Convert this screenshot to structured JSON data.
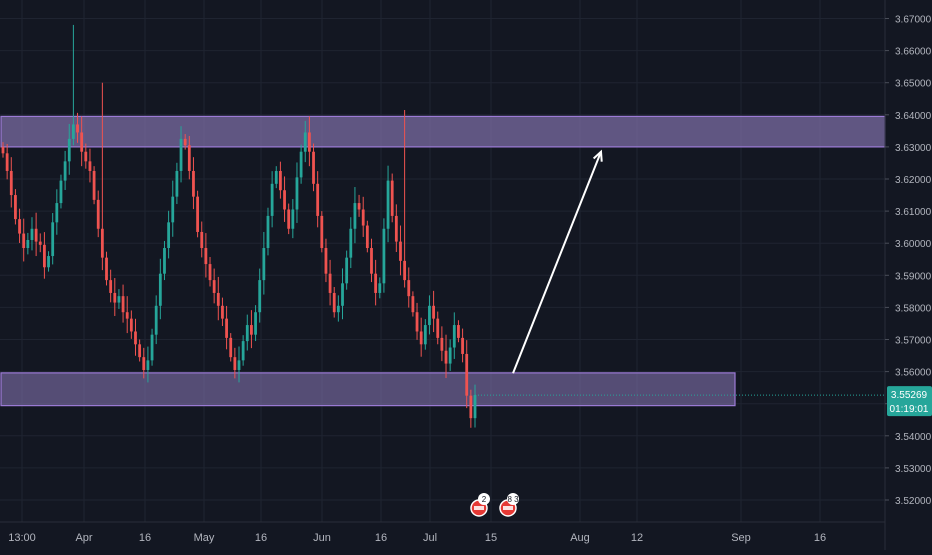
{
  "colors": {
    "background": "#131722",
    "grid": "#1f2431",
    "axis_text": "#b2b5be",
    "up_candle": "#26a69a",
    "down_candle": "#ef5350",
    "zone_fill": "#7e6fa8",
    "zone_border": "#9c7bd6",
    "arrow": "#ffffff",
    "price_label_bg": "#26a69a",
    "price_line": "#26a69a",
    "badge_red": "#e53935",
    "badge_white": "#ffffff"
  },
  "chart_data": {
    "type": "candlestick",
    "x_tick_labels": [
      "13:00",
      "Apr",
      "16",
      "May",
      "16",
      "Jun",
      "16",
      "Jul",
      "15",
      "Aug",
      "12",
      "Sep",
      "16"
    ],
    "y_tick_labels": [
      "3.67000",
      "3.66000",
      "3.65000",
      "3.64000",
      "3.63000",
      "3.62000",
      "3.61000",
      "3.60000",
      "3.59000",
      "3.58000",
      "3.57000",
      "3.56000",
      "3.55000",
      "3.54000",
      "3.53000",
      "3.52000"
    ],
    "ylim": [
      3.5195,
      3.6715
    ],
    "grid": true,
    "close_series": [
      3.628,
      3.6225,
      3.615,
      3.6075,
      3.603,
      3.5985,
      3.601,
      3.6045,
      3.6005,
      3.5995,
      3.5925,
      3.596,
      3.6065,
      3.6125,
      3.6195,
      3.6255,
      3.6325,
      3.637,
      3.6345,
      3.6285,
      3.6255,
      3.6225,
      3.6135,
      3.6045,
      3.5955,
      3.5885,
      3.5845,
      3.5815,
      3.5835,
      3.5785,
      3.5765,
      3.5725,
      3.5685,
      3.5645,
      3.5605,
      3.5635,
      3.5715,
      3.5805,
      3.5905,
      3.5985,
      3.6065,
      3.6145,
      3.6225,
      3.6325,
      3.6305,
      3.6225,
      3.6145,
      3.6035,
      3.5985,
      3.5935,
      3.5885,
      3.5845,
      3.5805,
      3.5765,
      3.5705,
      3.5645,
      3.5605,
      3.5635,
      3.5695,
      3.5745,
      3.5715,
      3.5785,
      3.5885,
      3.5985,
      3.6085,
      3.6185,
      3.6225,
      3.6165,
      3.6105,
      3.6045,
      3.6105,
      3.6205,
      3.6285,
      3.6345,
      3.6285,
      3.6185,
      3.6085,
      3.5985,
      3.5905,
      3.5845,
      3.5785,
      3.5805,
      3.5875,
      3.5955,
      3.6045,
      3.6125,
      3.6105,
      3.6055,
      3.5985,
      3.5905,
      3.5845,
      3.5875,
      3.6045,
      3.6195,
      3.6085,
      3.6005,
      3.5945,
      3.5885,
      3.5835,
      3.5785,
      3.5725,
      3.5685,
      3.5745,
      3.5805,
      3.5765,
      3.5705,
      3.5665,
      3.5625,
      3.5675,
      3.5745,
      3.5705,
      3.5655,
      3.5525,
      3.5455,
      3.5527
    ],
    "resistance_zone": {
      "low": 3.63,
      "high": 3.6395
    },
    "support_zone": {
      "low": 3.5494,
      "high": 3.5596
    },
    "current_price": {
      "value": 3.55269,
      "label": "3.55269",
      "countdown": "01:19:01"
    },
    "arrow": {
      "from_price": 3.5595,
      "to_price": 3.6285,
      "direction": "up"
    },
    "event_badges": [
      {
        "icon": "us-flag-icon",
        "count": "2"
      },
      {
        "icon": "us-flag-icon",
        "count": "8 3"
      }
    ]
  }
}
